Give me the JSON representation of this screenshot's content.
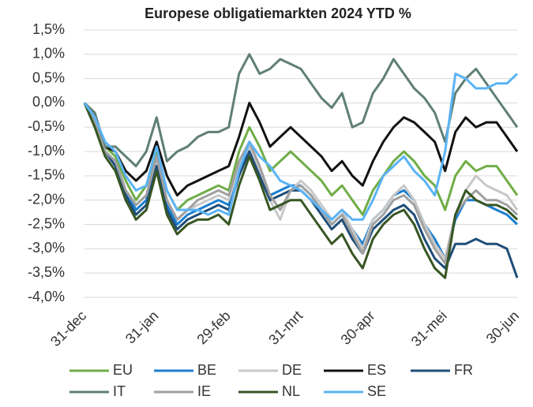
{
  "chart_data": {
    "type": "line",
    "title": "Europese obligatiemarkten 2024 YTD %",
    "categories": [
      "31-dec",
      null,
      null,
      null,
      null,
      null,
      null,
      "31-jan",
      null,
      null,
      null,
      null,
      null,
      null,
      "29-feb",
      null,
      null,
      null,
      null,
      null,
      null,
      "31-mrt",
      null,
      null,
      null,
      null,
      null,
      null,
      "30-apr",
      null,
      null,
      null,
      null,
      null,
      null,
      "31-mei",
      null,
      null,
      null,
      null,
      null,
      null,
      "30-jun"
    ],
    "ylim": [
      -4.0,
      1.5
    ],
    "yticks": [
      {
        "value": -4.0,
        "label": "-4,0%"
      },
      {
        "value": -3.5,
        "label": "-3,5%"
      },
      {
        "value": -3.0,
        "label": "-3,0%"
      },
      {
        "value": -2.5,
        "label": "-2,5%"
      },
      {
        "value": -2.0,
        "label": "-2,0%"
      },
      {
        "value": -1.5,
        "label": "-1,5%"
      },
      {
        "value": -1.0,
        "label": "-1,0%"
      },
      {
        "value": -0.5,
        "label": "-0,5%"
      },
      {
        "value": 0.0,
        "label": "0,0%"
      },
      {
        "value": 0.5,
        "label": "0,5%"
      },
      {
        "value": 1.0,
        "label": "1,0%"
      },
      {
        "value": 1.5,
        "label": "1,5%"
      }
    ],
    "grid": true,
    "series": [
      {
        "name": "EU",
        "color": "#70ad47",
        "values": [
          0,
          -0.3,
          -0.9,
          -1.1,
          -1.6,
          -2.0,
          -1.7,
          -1.0,
          -1.8,
          -2.2,
          -2.0,
          -1.9,
          -1.8,
          -1.7,
          -1.8,
          -1.0,
          -0.5,
          -0.9,
          -1.4,
          -1.2,
          -1.0,
          -1.2,
          -1.4,
          -1.6,
          -1.9,
          -1.7,
          -2.0,
          -2.3,
          -1.8,
          -1.5,
          -1.2,
          -1.0,
          -1.2,
          -1.5,
          -1.7,
          -2.2,
          -1.5,
          -1.2,
          -1.4,
          -1.3,
          -1.3,
          -1.6,
          -1.9
        ]
      },
      {
        "name": "BE",
        "color": "#1a7fd1",
        "values": [
          0,
          -0.4,
          -1.0,
          -1.2,
          -1.8,
          -2.2,
          -2.0,
          -1.2,
          -2.1,
          -2.5,
          -2.3,
          -2.2,
          -2.1,
          -2.0,
          -2.1,
          -1.4,
          -0.9,
          -1.4,
          -1.9,
          -1.8,
          -1.7,
          -1.7,
          -1.9,
          -2.2,
          -2.5,
          -2.3,
          -2.6,
          -2.9,
          -2.4,
          -2.2,
          -1.9,
          -1.8,
          -2.0,
          -2.5,
          -2.8,
          -3.2,
          -2.4,
          -2.0,
          -2.0,
          -2.1,
          -2.2,
          -2.3,
          -2.5
        ]
      },
      {
        "name": "DE",
        "color": "#c8c8c8",
        "values": [
          0,
          -0.4,
          -1.0,
          -1.2,
          -1.8,
          -2.1,
          -1.9,
          -1.2,
          -2.0,
          -2.4,
          -2.2,
          -2.1,
          -2.0,
          -1.9,
          -2.0,
          -1.3,
          -0.9,
          -1.4,
          -2.0,
          -2.4,
          -1.8,
          -1.6,
          -1.8,
          -2.1,
          -2.4,
          -2.2,
          -2.6,
          -3.0,
          -2.4,
          -2.2,
          -1.9,
          -1.7,
          -2.0,
          -2.5,
          -2.9,
          -3.2,
          -2.3,
          -1.8,
          -1.5,
          -1.7,
          -1.8,
          -1.9,
          -2.2
        ]
      },
      {
        "name": "ES",
        "color": "#111111",
        "values": [
          0,
          -0.3,
          -0.9,
          -1.0,
          -1.4,
          -1.6,
          -1.4,
          -0.8,
          -1.5,
          -1.9,
          -1.7,
          -1.6,
          -1.5,
          -1.4,
          -1.3,
          -0.7,
          0.0,
          -0.4,
          -0.9,
          -0.7,
          -0.5,
          -0.7,
          -0.9,
          -1.1,
          -1.4,
          -1.2,
          -1.5,
          -1.7,
          -1.2,
          -0.8,
          -0.5,
          -0.3,
          -0.4,
          -0.6,
          -0.8,
          -1.4,
          -0.6,
          -0.3,
          -0.5,
          -0.4,
          -0.4,
          -0.7,
          -1.0
        ]
      },
      {
        "name": "FR",
        "color": "#1f4e79",
        "values": [
          0,
          -0.4,
          -1.0,
          -1.3,
          -1.9,
          -2.3,
          -2.1,
          -1.3,
          -2.2,
          -2.6,
          -2.4,
          -2.3,
          -2.2,
          -2.1,
          -2.2,
          -1.5,
          -1.0,
          -1.5,
          -2.0,
          -1.9,
          -1.8,
          -1.8,
          -2.0,
          -2.3,
          -2.6,
          -2.4,
          -2.8,
          -3.1,
          -2.6,
          -2.4,
          -2.2,
          -2.1,
          -2.3,
          -2.8,
          -3.2,
          -3.4,
          -2.9,
          -2.9,
          -2.8,
          -2.9,
          -2.9,
          -3.0,
          -3.6
        ]
      },
      {
        "name": "IT",
        "color": "#5f7f75",
        "values": [
          0,
          -0.2,
          -0.9,
          -0.9,
          -1.1,
          -1.3,
          -1.0,
          -0.3,
          -1.2,
          -1.0,
          -0.9,
          -0.7,
          -0.6,
          -0.6,
          -0.5,
          0.6,
          1.0,
          0.6,
          0.7,
          0.9,
          0.8,
          0.7,
          0.4,
          0.1,
          -0.1,
          0.2,
          -0.5,
          -0.4,
          0.2,
          0.5,
          0.9,
          0.6,
          0.3,
          0.1,
          -0.2,
          -0.8,
          0.2,
          0.5,
          0.7,
          0.4,
          0.1,
          -0.2,
          -0.5
        ]
      },
      {
        "name": "IE",
        "color": "#a0a0a0",
        "values": [
          0,
          -0.4,
          -1.0,
          -1.2,
          -1.8,
          -2.1,
          -1.9,
          -1.1,
          -2.0,
          -2.4,
          -2.2,
          -2.0,
          -1.9,
          -1.8,
          -1.9,
          -1.2,
          -0.8,
          -1.3,
          -1.9,
          -2.2,
          -1.8,
          -1.7,
          -1.9,
          -2.2,
          -2.5,
          -2.3,
          -2.7,
          -3.1,
          -2.5,
          -2.3,
          -2.0,
          -1.9,
          -2.1,
          -2.6,
          -3.0,
          -3.3,
          -2.3,
          -2.0,
          -1.8,
          -2.0,
          -2.0,
          -2.1,
          -2.3
        ]
      },
      {
        "name": "NL",
        "color": "#375623",
        "values": [
          0,
          -0.5,
          -1.1,
          -1.4,
          -2.0,
          -2.4,
          -2.2,
          -1.4,
          -2.3,
          -2.7,
          -2.5,
          -2.4,
          -2.4,
          -2.3,
          -2.5,
          -1.7,
          -1.1,
          -1.6,
          -2.2,
          -2.1,
          -2.0,
          -2.0,
          -2.3,
          -2.6,
          -2.9,
          -2.7,
          -3.1,
          -3.4,
          -2.8,
          -2.5,
          -2.3,
          -2.2,
          -2.5,
          -3.0,
          -3.4,
          -3.6,
          -2.3,
          -1.8,
          -2.0,
          -2.1,
          -2.1,
          -2.2,
          -2.4
        ]
      },
      {
        "name": "SE",
        "color": "#5bb4f5",
        "values": [
          0,
          -0.3,
          -0.8,
          -1.0,
          -1.5,
          -1.8,
          -1.7,
          -0.9,
          -1.8,
          -2.2,
          -2.2,
          -2.2,
          -2.3,
          -2.2,
          -2.3,
          -1.4,
          -0.8,
          -1.1,
          -1.3,
          -1.6,
          -1.7,
          -1.8,
          -2.0,
          -2.2,
          -2.4,
          -2.2,
          -2.4,
          -2.4,
          -2.0,
          -1.5,
          -1.3,
          -1.1,
          -1.4,
          -1.6,
          -1.9,
          -1.0,
          0.6,
          0.5,
          0.3,
          0.3,
          0.4,
          0.4,
          0.6
        ]
      }
    ]
  }
}
